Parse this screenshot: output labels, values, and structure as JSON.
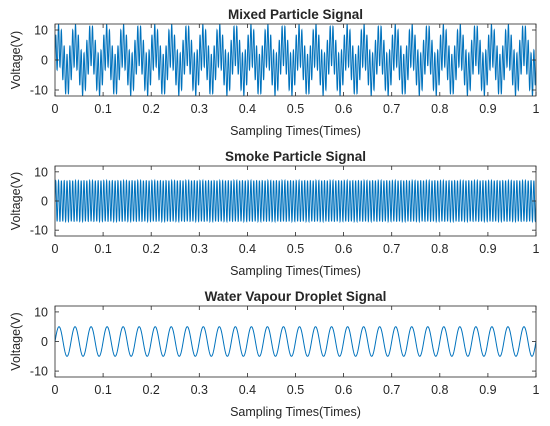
{
  "chart_data": [
    {
      "type": "line",
      "title": "Mixed Particle Signal",
      "xlabel": "Sampling Times(Times)",
      "ylabel": "Voltage(V)",
      "xlim": [
        0,
        1
      ],
      "ylim": [
        -12,
        12
      ],
      "xticks": [
        "0",
        "0.1",
        "0.2",
        "0.3",
        "0.4",
        "0.5",
        "0.6",
        "0.7",
        "0.8",
        "0.9",
        "1"
      ],
      "yticks": [
        "10",
        "0",
        "-10"
      ],
      "grid": false,
      "color": "#0072BD",
      "signal": {
        "expression": "7*sin(2*pi*170*x) + 5*sin(2*pi*30*x)",
        "components": [
          {
            "amplitude": 7,
            "frequency": 170
          },
          {
            "amplitude": 5,
            "frequency": 30
          }
        ],
        "y_range": [
          -12,
          12
        ]
      }
    },
    {
      "type": "line",
      "title": "Smoke Particle Signal",
      "xlabel": "Sampling Times(Times)",
      "ylabel": "Voltage(V)",
      "xlim": [
        0,
        1
      ],
      "ylim": [
        -12,
        12
      ],
      "xticks": [
        "0",
        "0.1",
        "0.2",
        "0.3",
        "0.4",
        "0.5",
        "0.6",
        "0.7",
        "0.8",
        "0.9",
        "1"
      ],
      "yticks": [
        "10",
        "0",
        "-10"
      ],
      "grid": false,
      "color": "#0072BD",
      "signal": {
        "expression": "7*sin(2*pi*170*x)",
        "components": [
          {
            "amplitude": 7,
            "frequency": 170
          }
        ],
        "y_range": [
          -7,
          7
        ]
      }
    },
    {
      "type": "line",
      "title": "Water Vapour Droplet Signal",
      "xlabel": "Sampling Times(Times)",
      "ylabel": "Voltage(V)",
      "xlim": [
        0,
        1
      ],
      "ylim": [
        -12,
        12
      ],
      "xticks": [
        "0",
        "0.1",
        "0.2",
        "0.3",
        "0.4",
        "0.5",
        "0.6",
        "0.7",
        "0.8",
        "0.9",
        "1"
      ],
      "yticks": [
        "10",
        "0",
        "-10"
      ],
      "grid": false,
      "color": "#0072BD",
      "signal": {
        "expression": "5*sin(2*pi*30*x)",
        "components": [
          {
            "amplitude": 5,
            "frequency": 30
          }
        ],
        "y_range": [
          -5,
          5
        ]
      }
    }
  ]
}
